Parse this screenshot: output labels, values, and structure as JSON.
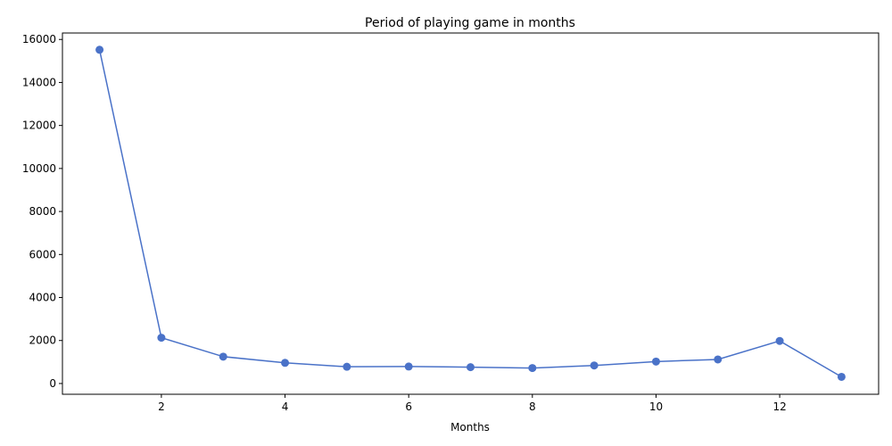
{
  "chart_data": {
    "type": "line",
    "title": "Period of playing game in months",
    "xlabel": "Months",
    "ylabel": "",
    "x": [
      1,
      2,
      3,
      4,
      5,
      6,
      7,
      8,
      9,
      10,
      11,
      12,
      13
    ],
    "series": [
      {
        "values": [
          15520,
          2130,
          1250,
          960,
          780,
          790,
          760,
          720,
          840,
          1020,
          1120,
          1980,
          310
        ],
        "color": "#4a72c8",
        "marker": "circle"
      }
    ],
    "xlim": [
      0.4,
      13.6
    ],
    "ylim": [
      -500,
      16300
    ],
    "xticks": [
      2,
      4,
      6,
      8,
      10,
      12
    ],
    "yticks": [
      0,
      2000,
      4000,
      6000,
      8000,
      10000,
      12000,
      14000,
      16000
    ],
    "grid": false,
    "legend": "none"
  }
}
